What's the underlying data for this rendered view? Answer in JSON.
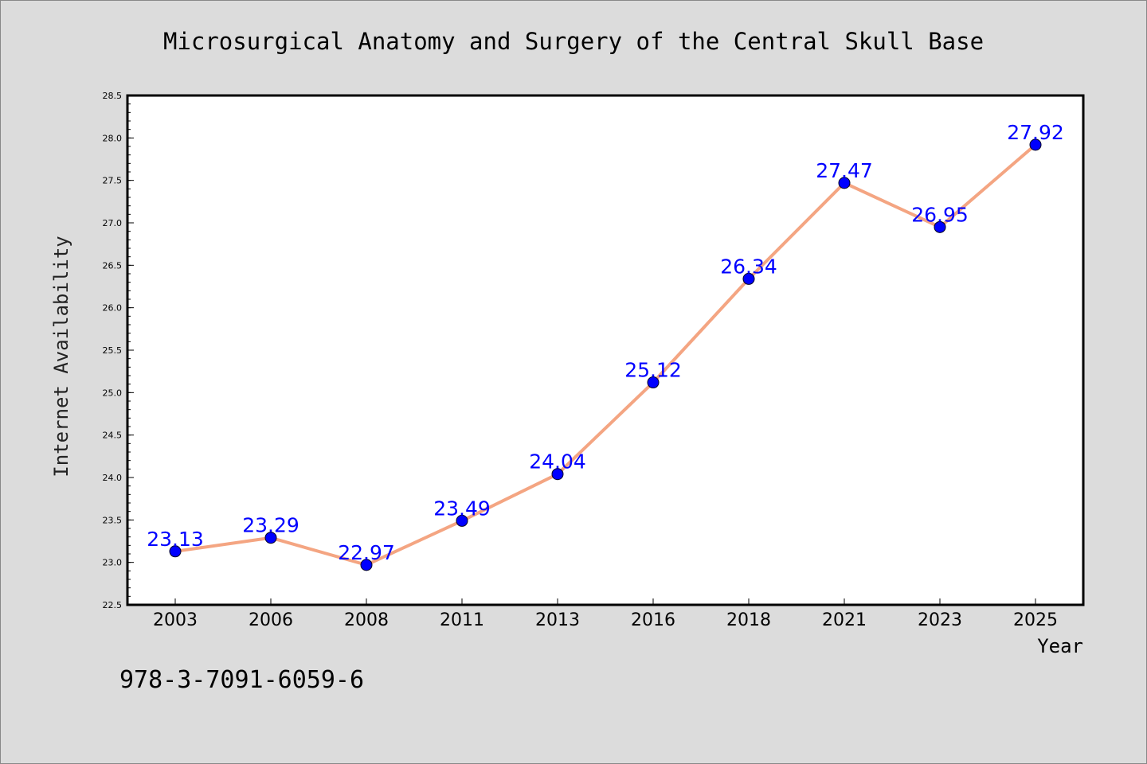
{
  "chart_data": {
    "type": "line",
    "title": "Microsurgical Anatomy and Surgery of the Central Skull Base",
    "xlabel": "Year",
    "ylabel": "Internet Availability",
    "categories": [
      "2003",
      "2006",
      "2008",
      "2011",
      "2013",
      "2016",
      "2018",
      "2021",
      "2023",
      "2025"
    ],
    "series": [
      {
        "values": [
          23.13,
          23.29,
          22.97,
          23.49,
          24.04,
          25.12,
          26.34,
          27.47,
          26.95,
          27.92
        ],
        "line_color": "#f4a582",
        "marker_color": "#0000ff"
      }
    ],
    "data_labels": [
      "23.13",
      "23.29",
      "22.97",
      "23.49",
      "24.04",
      "25.12",
      "26.34",
      "27.47",
      "26.95",
      "27.92"
    ],
    "ylim": [
      22.5,
      28.5
    ],
    "yticks": [
      "22.5",
      "23.0",
      "23.5",
      "24.0",
      "24.5",
      "25.0",
      "25.5",
      "26.0",
      "26.5",
      "27.0",
      "27.5",
      "28.0",
      "28.5"
    ],
    "grid": false
  },
  "footer": {
    "isbn": "978-3-7091-6059-6"
  }
}
